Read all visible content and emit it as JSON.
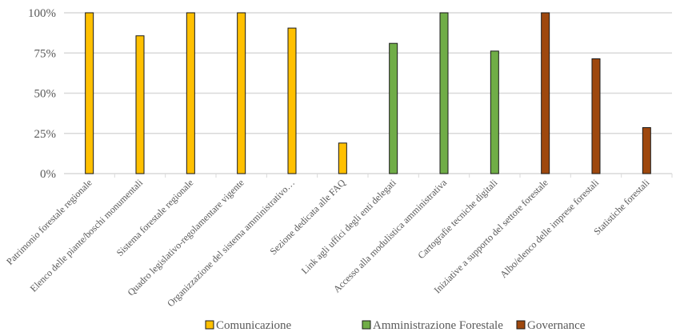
{
  "chart_data": {
    "type": "bar",
    "title": "",
    "xlabel": "",
    "ylabel": "",
    "ylim": [
      0,
      100
    ],
    "yticks": [
      "0%",
      "25%",
      "50%",
      "75%",
      "100%"
    ],
    "ytick_values": [
      0,
      25,
      50,
      75,
      100
    ],
    "grid": true,
    "legend_position": "bottom",
    "categories": [
      "Patrimonio forestale regionale",
      "Elenco delle piante/boschi monumentali",
      "Sistema forestale regionale",
      "Quadro legislativo-regolamentare vigente",
      "Organizzazione del sistema amministrativo…",
      "Sezione dedicata alle FAQ",
      "Link agli uffici degli enti delegati",
      "Accesso alla modulistica amministrativa",
      "Cartografie tecniche digitali",
      "Iniziative a supporto del settore forestale",
      "Albo/elenco delle imprese forestali",
      "Statistiche forestali"
    ],
    "series": [
      {
        "name": "Comunicazione",
        "color": "#FFC000",
        "values": [
          100,
          85.7,
          100,
          100,
          90.5,
          19.0,
          null,
          null,
          null,
          null,
          null,
          null
        ]
      },
      {
        "name": "Amministrazione Forestale",
        "color": "#70AD47",
        "values": [
          null,
          null,
          null,
          null,
          null,
          null,
          81.0,
          100,
          76.2,
          null,
          null,
          null
        ]
      },
      {
        "name": "Governance",
        "color": "#9E480E",
        "values": [
          null,
          null,
          null,
          null,
          null,
          null,
          null,
          null,
          null,
          100,
          71.4,
          28.6
        ]
      }
    ]
  }
}
